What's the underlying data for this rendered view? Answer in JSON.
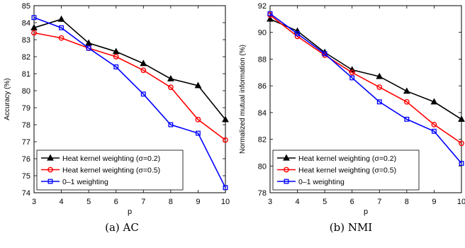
{
  "chart_data": [
    {
      "type": "line",
      "caption": "(a)  AC",
      "xlabel": "p",
      "ylabel": "Accuracy (%)",
      "x": [
        3,
        4,
        5,
        6,
        7,
        8,
        9,
        10
      ],
      "xlim": [
        3,
        10
      ],
      "ylim": [
        74,
        85
      ],
      "yticks": [
        74,
        75,
        76,
        77,
        78,
        79,
        80,
        81,
        82,
        83,
        84,
        85
      ],
      "grid": false,
      "legend_position": "bottom-left",
      "series": [
        {
          "name": "Heat kernel weighting (σ=0.2)",
          "color": "#000000",
          "marker": "triangle",
          "values": [
            83.7,
            84.2,
            82.8,
            82.3,
            81.6,
            80.7,
            80.3,
            78.3
          ]
        },
        {
          "name": "Heat kernel weighting (σ=0.5)",
          "color": "#ff0000",
          "marker": "circle",
          "values": [
            83.4,
            83.1,
            82.5,
            82.0,
            81.2,
            80.2,
            78.3,
            77.1
          ]
        },
        {
          "name": "0–1 weighting",
          "color": "#0000ff",
          "marker": "square",
          "values": [
            84.3,
            83.7,
            82.5,
            81.4,
            79.8,
            78.0,
            77.5,
            74.3
          ]
        }
      ]
    },
    {
      "type": "line",
      "caption": "(b)  NMI",
      "xlabel": "p",
      "ylabel": "Normalized mutual information (%)",
      "x": [
        3,
        4,
        5,
        6,
        7,
        8,
        9,
        10
      ],
      "xlim": [
        3,
        10
      ],
      "ylim": [
        78,
        92
      ],
      "yticks": [
        78,
        80,
        82,
        84,
        86,
        88,
        90,
        92
      ],
      "grid": false,
      "legend_position": "bottom-left",
      "series": [
        {
          "name": "Heat kernel weighting (σ=0.2)",
          "color": "#000000",
          "marker": "triangle",
          "values": [
            91.0,
            90.1,
            88.5,
            87.2,
            86.7,
            85.6,
            84.8,
            83.5
          ]
        },
        {
          "name": "Heat kernel weighting (σ=0.5)",
          "color": "#ff0000",
          "marker": "circle",
          "values": [
            91.3,
            89.7,
            88.3,
            87.0,
            85.9,
            84.8,
            83.1,
            81.7
          ]
        },
        {
          "name": "0–1 weighting",
          "color": "#0000ff",
          "marker": "square",
          "values": [
            91.4,
            89.9,
            88.4,
            86.6,
            84.8,
            83.5,
            82.6,
            80.2
          ]
        }
      ]
    }
  ]
}
